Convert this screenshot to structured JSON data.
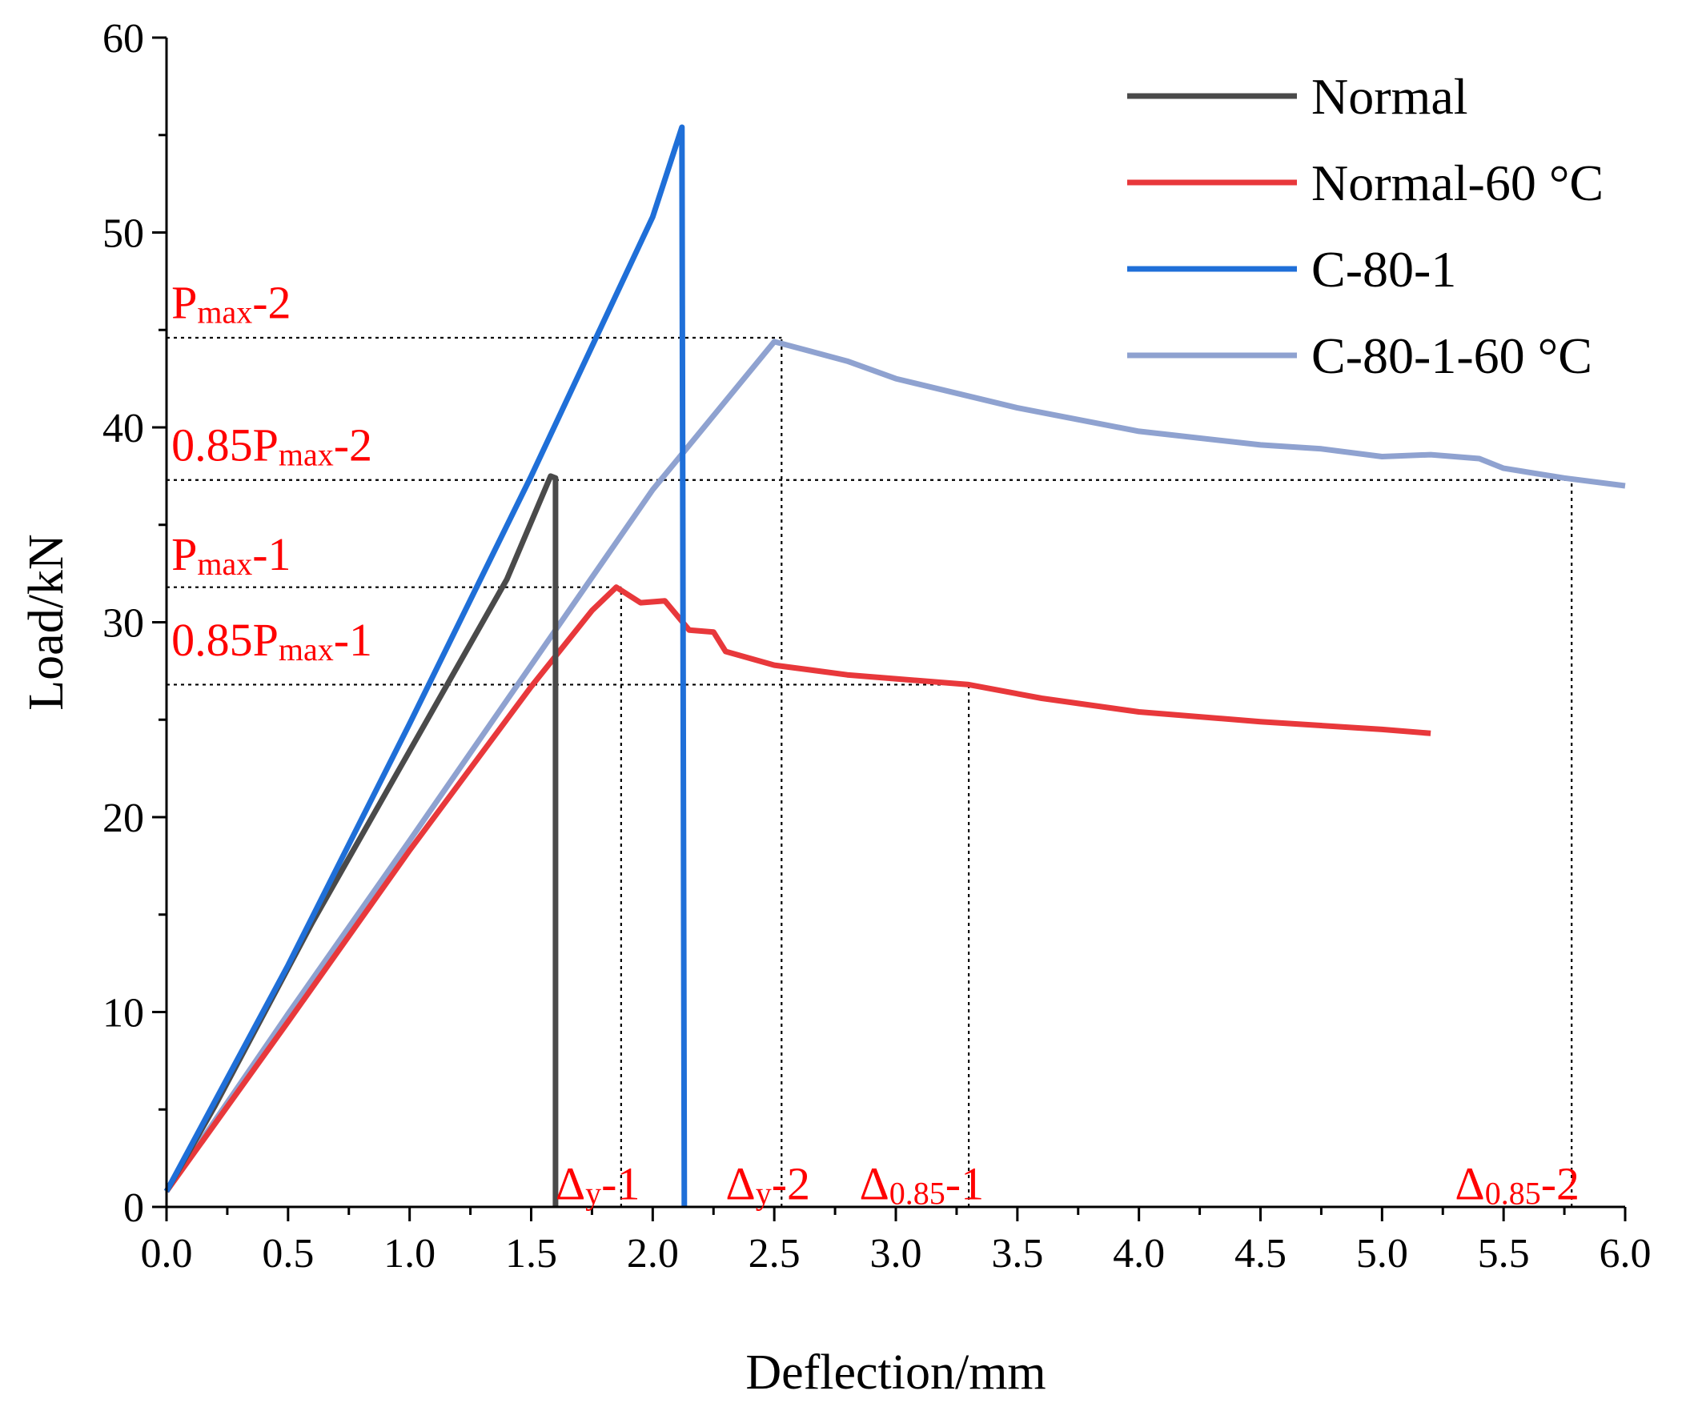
{
  "chart_data": {
    "type": "line",
    "xlabel": "Deflection/mm",
    "ylabel": "Load/kN",
    "xlim": [
      0,
      6
    ],
    "ylim": [
      0,
      60
    ],
    "x_ticks": [
      0.0,
      0.5,
      1.0,
      1.5,
      2.0,
      2.5,
      3.0,
      3.5,
      4.0,
      4.5,
      5.0,
      5.5,
      6.0
    ],
    "x_tick_labels": [
      "0.0",
      "0.5",
      "1.0",
      "1.5",
      "2.0",
      "2.5",
      "3.0",
      "3.5",
      "4.0",
      "4.5",
      "5.0",
      "5.5",
      "6.0"
    ],
    "y_ticks": [
      0,
      10,
      20,
      30,
      40,
      50,
      60
    ],
    "y_tick_labels": [
      "0",
      "10",
      "20",
      "30",
      "40",
      "50",
      "60"
    ],
    "grid": false,
    "legend_position": "top-right",
    "series": [
      {
        "name": "Normal",
        "color": "#4a4a4a",
        "points": [
          [
            0,
            0.8
          ],
          [
            0.2,
            5.2
          ],
          [
            0.6,
            14.6
          ],
          [
            1.0,
            23.4
          ],
          [
            1.4,
            32.2
          ],
          [
            1.58,
            37.5
          ],
          [
            1.6,
            37.4
          ],
          [
            1.6,
            0
          ]
        ]
      },
      {
        "name": "Normal-60 °C",
        "color": "#e8383b",
        "points": [
          [
            0,
            0.8
          ],
          [
            0.5,
            9.5
          ],
          [
            1.0,
            18.3
          ],
          [
            1.5,
            26.7
          ],
          [
            1.75,
            30.6
          ],
          [
            1.85,
            31.8
          ],
          [
            1.95,
            31.0
          ],
          [
            2.05,
            31.1
          ],
          [
            2.15,
            29.6
          ],
          [
            2.25,
            29.5
          ],
          [
            2.3,
            28.5
          ],
          [
            2.5,
            27.8
          ],
          [
            2.8,
            27.3
          ],
          [
            3.0,
            27.1
          ],
          [
            3.3,
            26.8
          ],
          [
            3.6,
            26.1
          ],
          [
            4.0,
            25.4
          ],
          [
            4.5,
            24.9
          ],
          [
            5.0,
            24.5
          ],
          [
            5.2,
            24.3
          ]
        ]
      },
      {
        "name": "C-80-1",
        "color": "#1f6fd8",
        "points": [
          [
            0,
            0.8
          ],
          [
            0.5,
            12.4
          ],
          [
            1.0,
            24.8
          ],
          [
            1.5,
            37.5
          ],
          [
            2.0,
            50.8
          ],
          [
            2.12,
            55.4
          ],
          [
            2.13,
            0
          ]
        ]
      },
      {
        "name": "C-80-1-60 °C",
        "color": "#8fa2d0",
        "points": [
          [
            0,
            0.8
          ],
          [
            0.5,
            9.9
          ],
          [
            1.0,
            18.8
          ],
          [
            1.5,
            27.8
          ],
          [
            2.0,
            36.8
          ],
          [
            2.5,
            44.4
          ],
          [
            2.8,
            43.4
          ],
          [
            3.0,
            42.5
          ],
          [
            3.5,
            41.0
          ],
          [
            4.0,
            39.8
          ],
          [
            4.5,
            39.1
          ],
          [
            4.75,
            38.9
          ],
          [
            5.0,
            38.5
          ],
          [
            5.2,
            38.6
          ],
          [
            5.4,
            38.4
          ],
          [
            5.5,
            37.9
          ],
          [
            5.75,
            37.4
          ],
          [
            6.0,
            37.0
          ]
        ]
      }
    ],
    "reference_lines": [
      {
        "orientation": "h",
        "value": 44.6,
        "from": 0,
        "to": 2.53
      },
      {
        "orientation": "h",
        "value": 37.3,
        "from": 0,
        "to": 5.78
      },
      {
        "orientation": "h",
        "value": 31.8,
        "from": 0,
        "to": 1.87
      },
      {
        "orientation": "h",
        "value": 26.8,
        "from": 0,
        "to": 3.3
      },
      {
        "orientation": "v",
        "value": 1.87,
        "from": 0,
        "to": 31.8
      },
      {
        "orientation": "v",
        "value": 2.53,
        "from": 0,
        "to": 44.6
      },
      {
        "orientation": "v",
        "value": 3.3,
        "from": 0,
        "to": 26.8
      },
      {
        "orientation": "v",
        "value": 5.78,
        "from": 0,
        "to": 37.3
      }
    ],
    "annotations": [
      {
        "id": "pmax-2",
        "main": "P",
        "sub": "max",
        "suffix": "-2",
        "at": [
          0.02,
          45.6
        ]
      },
      {
        "id": "085pmax-2",
        "main": "0.85P",
        "sub": "max",
        "suffix": "-2",
        "at": [
          0.02,
          38.3
        ]
      },
      {
        "id": "pmax-1",
        "main": "P",
        "sub": "max",
        "suffix": "-1",
        "at": [
          0.02,
          32.7
        ]
      },
      {
        "id": "085pmax-1",
        "main": "0.85P",
        "sub": "max",
        "suffix": "-1",
        "at": [
          0.02,
          28.3
        ]
      },
      {
        "id": "dy-1",
        "main": "Δ",
        "sub": "y",
        "suffix": "-1",
        "at": [
          1.6,
          0.4
        ]
      },
      {
        "id": "dy-2",
        "main": "Δ",
        "sub": "y",
        "suffix": "-2",
        "at": [
          2.3,
          0.4
        ]
      },
      {
        "id": "d085-1",
        "main": "Δ",
        "sub": "0.85",
        "suffix": "-1",
        "at": [
          2.85,
          0.4
        ]
      },
      {
        "id": "d085-2",
        "main": "Δ",
        "sub": "0.85",
        "suffix": "-2",
        "at": [
          5.3,
          0.4
        ]
      }
    ]
  }
}
